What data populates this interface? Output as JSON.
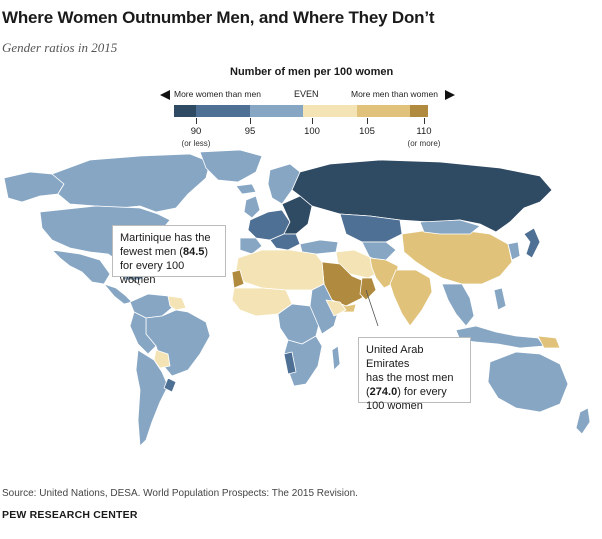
{
  "title": "Where Women Outnumber Men, and Where They Don’t",
  "subtitle": "Gender ratios in 2015",
  "legend": {
    "title": "Number of men per 100 women",
    "left_arrow_label": "More women than men",
    "center_label": "EVEN",
    "right_arrow_label": "More men than women",
    "ticks": [
      "90",
      "95",
      "100",
      "105",
      "110"
    ],
    "tick_sublabels": [
      "(or less)",
      "",
      "",
      "",
      "(or more)"
    ],
    "colors": [
      "#2f4a63",
      "#4e7094",
      "#86a6c4",
      "#f4e4b5",
      "#e0c27a",
      "#b08a3e"
    ]
  },
  "callouts": {
    "martinique": {
      "line1": "Martinique has the",
      "line2_pre": "fewest men (",
      "value": "84.5",
      "line2_post": ")",
      "line3": "for every 100 women"
    },
    "uae": {
      "line1": "United Arab Emirates",
      "line2": "has the most men",
      "value": "274.0",
      "line3_post": " for every",
      "line4": "100 women"
    }
  },
  "source": "Source: United Nations, DESA. World Population Prospects: The 2015 Revision.",
  "organization": "PEW RESEARCH CENTER"
}
